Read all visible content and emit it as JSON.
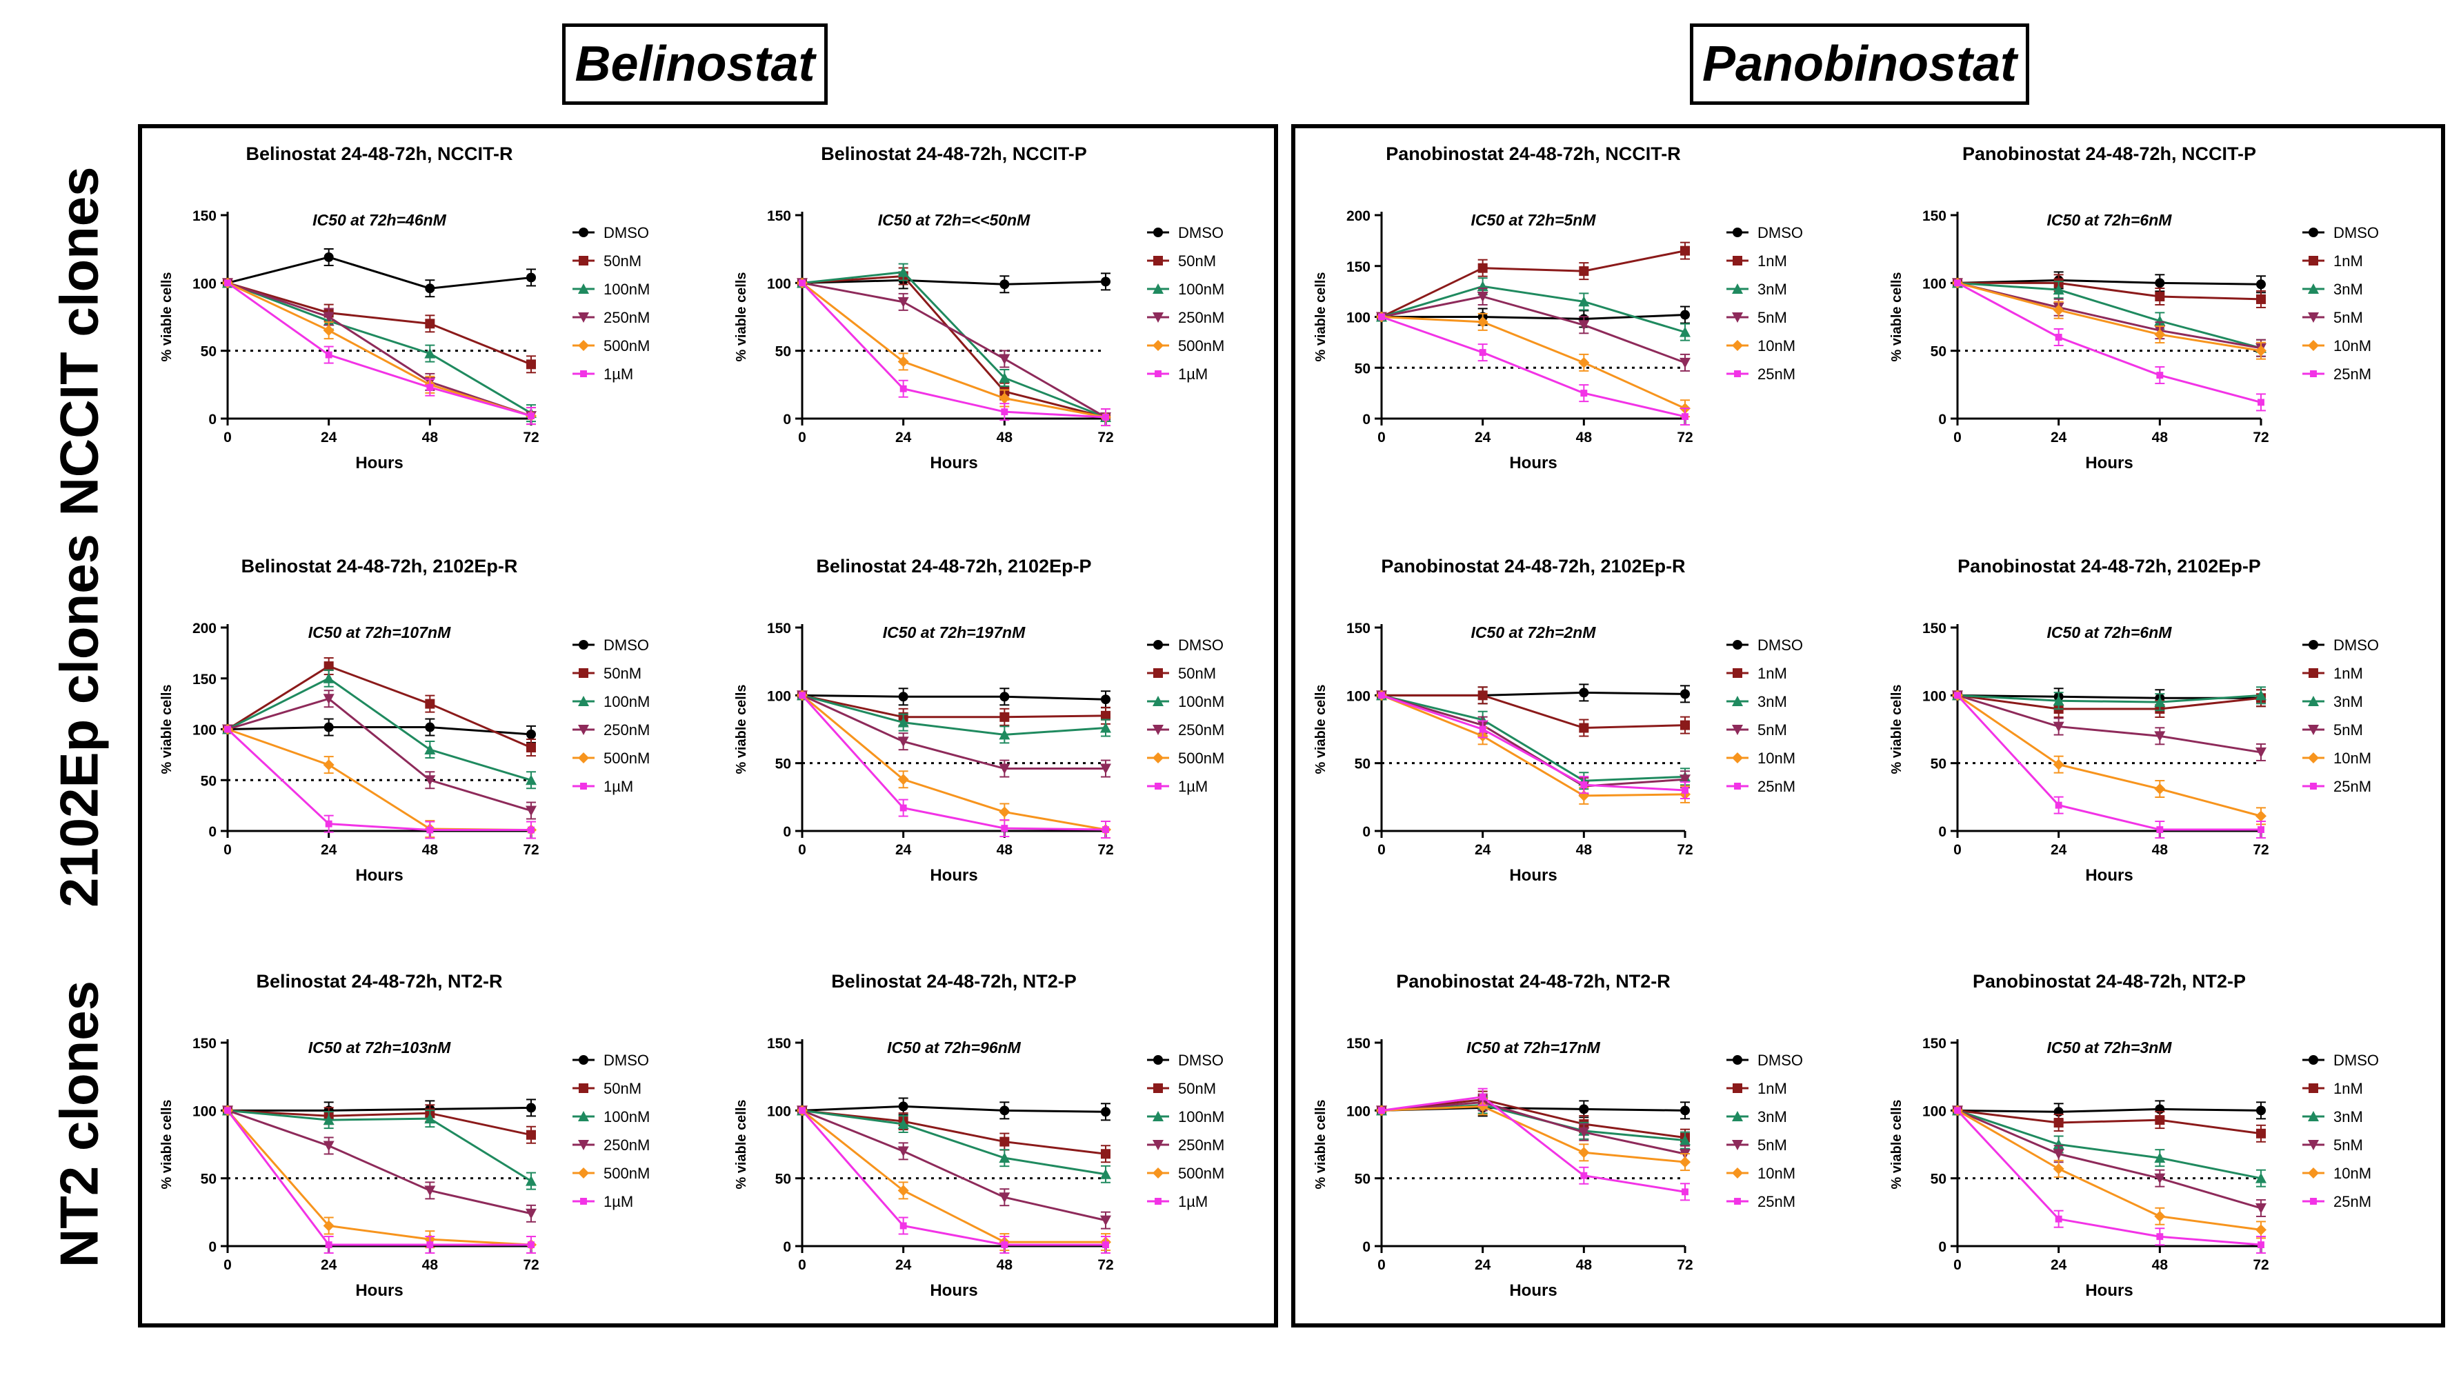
{
  "headers": {
    "belinostat": "Belinostat",
    "panobinostat": "Panobinostat"
  },
  "row_labels": [
    "NCCIT clones",
    "2102Ep clones",
    "NT2 clones"
  ],
  "colors": {
    "series": [
      "#000000",
      "#8B1A1A",
      "#1F8A5F",
      "#8E2A5A",
      "#F7941D",
      "#F233E6"
    ],
    "ic50_line": "#000000"
  },
  "chart_data": [
    {
      "type": "line",
      "title": "Belinostat 24-48-72h, NCCIT-R",
      "annotation": "IC50 at 72h=46nM",
      "xlabel": "Hours",
      "ylabel": "% viable cells",
      "x": [
        0,
        24,
        48,
        72
      ],
      "xticks": [
        "0",
        "24",
        "48",
        "72"
      ],
      "ylim": [
        0,
        150
      ],
      "yticks": [
        "0",
        "50",
        "100",
        "150"
      ],
      "threshold": 50,
      "series": [
        {
          "name": "DMSO",
          "values": [
            100,
            119,
            96,
            104
          ]
        },
        {
          "name": "50nM",
          "values": [
            100,
            78,
            70,
            40
          ]
        },
        {
          "name": "100nM",
          "values": [
            100,
            72,
            48,
            4
          ]
        },
        {
          "name": "250nM",
          "values": [
            100,
            75,
            27,
            2
          ]
        },
        {
          "name": "500nM",
          "values": [
            100,
            65,
            25,
            2
          ]
        },
        {
          "name": "1µM",
          "values": [
            100,
            47,
            23,
            2
          ]
        }
      ]
    },
    {
      "type": "line",
      "title": "Belinostat 24-48-72h, NCCIT-P",
      "annotation": "IC50 at 72h=<<50nM",
      "xlabel": "Hours",
      "ylabel": "% viable cells",
      "x": [
        0,
        24,
        48,
        72
      ],
      "xticks": [
        "0",
        "24",
        "48",
        "72"
      ],
      "ylim": [
        0,
        150
      ],
      "yticks": [
        "0",
        "50",
        "100",
        "150"
      ],
      "threshold": 50,
      "series": [
        {
          "name": "DMSO",
          "values": [
            100,
            102,
            99,
            101
          ]
        },
        {
          "name": "50nM",
          "values": [
            100,
            105,
            20,
            1
          ]
        },
        {
          "name": "100nM",
          "values": [
            100,
            108,
            30,
            1
          ]
        },
        {
          "name": "250nM",
          "values": [
            100,
            86,
            44,
            1
          ]
        },
        {
          "name": "500nM",
          "values": [
            100,
            42,
            15,
            1
          ]
        },
        {
          "name": "1µM",
          "values": [
            100,
            22,
            5,
            1
          ]
        }
      ]
    },
    {
      "type": "line",
      "title": "Panobinostat 24-48-72h, NCCIT-R",
      "annotation": "IC50 at 72h=5nM",
      "xlabel": "Hours",
      "ylabel": "% viable cells",
      "x": [
        0,
        24,
        48,
        72
      ],
      "xticks": [
        "0",
        "24",
        "48",
        "72"
      ],
      "ylim": [
        0,
        200
      ],
      "yticks": [
        "0",
        "50",
        "100",
        "150",
        "200"
      ],
      "threshold": 50,
      "series": [
        {
          "name": "DMSO",
          "values": [
            100,
            100,
            98,
            102
          ]
        },
        {
          "name": "1nM",
          "values": [
            100,
            148,
            145,
            165
          ]
        },
        {
          "name": "3nM",
          "values": [
            100,
            130,
            115,
            85
          ]
        },
        {
          "name": "5nM",
          "values": [
            100,
            120,
            92,
            55
          ]
        },
        {
          "name": "10nM",
          "values": [
            100,
            95,
            55,
            10
          ]
        },
        {
          "name": "25nM",
          "values": [
            100,
            65,
            25,
            2
          ]
        }
      ]
    },
    {
      "type": "line",
      "title": "Panobinostat 24-48-72h, NCCIT-P",
      "annotation": "IC50 at 72h=6nM",
      "xlabel": "Hours",
      "ylabel": "% viable cells",
      "x": [
        0,
        24,
        48,
        72
      ],
      "xticks": [
        "0",
        "24",
        "48",
        "72"
      ],
      "ylim": [
        0,
        150
      ],
      "yticks": [
        "0",
        "50",
        "100",
        "150"
      ],
      "threshold": 50,
      "series": [
        {
          "name": "DMSO",
          "values": [
            100,
            102,
            100,
            99
          ]
        },
        {
          "name": "1nM",
          "values": [
            100,
            100,
            90,
            88
          ]
        },
        {
          "name": "3nM",
          "values": [
            100,
            95,
            72,
            52
          ]
        },
        {
          "name": "5nM",
          "values": [
            100,
            82,
            65,
            52
          ]
        },
        {
          "name": "10nM",
          "values": [
            100,
            80,
            62,
            50
          ]
        },
        {
          "name": "25nM",
          "values": [
            100,
            60,
            32,
            12
          ]
        }
      ]
    },
    {
      "type": "line",
      "title": "Belinostat 24-48-72h, 2102Ep-R",
      "annotation": "IC50 at 72h=107nM",
      "xlabel": "Hours",
      "ylabel": "% viable cells",
      "x": [
        0,
        24,
        48,
        72
      ],
      "xticks": [
        "0",
        "24",
        "48",
        "72"
      ],
      "ylim": [
        0,
        200
      ],
      "yticks": [
        "0",
        "50",
        "100",
        "150",
        "200"
      ],
      "threshold": 50,
      "series": [
        {
          "name": "DMSO",
          "values": [
            100,
            102,
            102,
            95
          ]
        },
        {
          "name": "50nM",
          "values": [
            100,
            162,
            125,
            82
          ]
        },
        {
          "name": "100nM",
          "values": [
            100,
            150,
            80,
            50
          ]
        },
        {
          "name": "250nM",
          "values": [
            100,
            130,
            50,
            20
          ]
        },
        {
          "name": "500nM",
          "values": [
            100,
            65,
            2,
            1
          ]
        },
        {
          "name": "1µM",
          "values": [
            100,
            7,
            1,
            1
          ]
        }
      ]
    },
    {
      "type": "line",
      "title": "Belinostat 24-48-72h, 2102Ep-P",
      "annotation": "IC50 at 72h=197nM",
      "xlabel": "Hours",
      "ylabel": "% viable cells",
      "x": [
        0,
        24,
        48,
        72
      ],
      "xticks": [
        "0",
        "24",
        "48",
        "72"
      ],
      "ylim": [
        0,
        150
      ],
      "yticks": [
        "0",
        "50",
        "100",
        "150"
      ],
      "threshold": 50,
      "series": [
        {
          "name": "DMSO",
          "values": [
            100,
            99,
            99,
            97
          ]
        },
        {
          "name": "50nM",
          "values": [
            100,
            84,
            84,
            85
          ]
        },
        {
          "name": "100nM",
          "values": [
            100,
            80,
            71,
            76
          ]
        },
        {
          "name": "250nM",
          "values": [
            100,
            66,
            46,
            46
          ]
        },
        {
          "name": "500nM",
          "values": [
            100,
            38,
            14,
            1
          ]
        },
        {
          "name": "1µM",
          "values": [
            100,
            17,
            2,
            1
          ]
        }
      ]
    },
    {
      "type": "line",
      "title": "Panobinostat 24-48-72h, 2102Ep-R",
      "annotation": "IC50 at 72h=2nM",
      "xlabel": "Hours",
      "ylabel": "% viable cells",
      "x": [
        0,
        24,
        48,
        72
      ],
      "xticks": [
        "0",
        "24",
        "48",
        "72"
      ],
      "ylim": [
        0,
        150
      ],
      "yticks": [
        "0",
        "50",
        "100",
        "150"
      ],
      "threshold": 50,
      "series": [
        {
          "name": "DMSO",
          "values": [
            100,
            100,
            102,
            101
          ]
        },
        {
          "name": "1nM",
          "values": [
            100,
            100,
            76,
            78
          ]
        },
        {
          "name": "3nM",
          "values": [
            100,
            82,
            37,
            40
          ]
        },
        {
          "name": "5nM",
          "values": [
            100,
            78,
            33,
            38
          ]
        },
        {
          "name": "10nM",
          "values": [
            100,
            70,
            26,
            27
          ]
        },
        {
          "name": "25nM",
          "values": [
            100,
            75,
            34,
            30
          ]
        }
      ]
    },
    {
      "type": "line",
      "title": "Panobinostat 24-48-72h, 2102Ep-P",
      "annotation": "IC50 at 72h=6nM",
      "xlabel": "Hours",
      "ylabel": "% viable cells",
      "x": [
        0,
        24,
        48,
        72
      ],
      "xticks": [
        "0",
        "24",
        "48",
        "72"
      ],
      "ylim": [
        0,
        150
      ],
      "yticks": [
        "0",
        "50",
        "100",
        "150"
      ],
      "threshold": 50,
      "series": [
        {
          "name": "DMSO",
          "values": [
            100,
            99,
            98,
            98
          ]
        },
        {
          "name": "1nM",
          "values": [
            100,
            90,
            90,
            98
          ]
        },
        {
          "name": "3nM",
          "values": [
            100,
            96,
            95,
            100
          ]
        },
        {
          "name": "5nM",
          "values": [
            100,
            77,
            70,
            58
          ]
        },
        {
          "name": "10nM",
          "values": [
            100,
            49,
            31,
            11
          ]
        },
        {
          "name": "25nM",
          "values": [
            100,
            19,
            1,
            1
          ]
        }
      ]
    },
    {
      "type": "line",
      "title": "Belinostat 24-48-72h, NT2-R",
      "annotation": "IC50 at 72h=103nM",
      "xlabel": "Hours",
      "ylabel": "% viable cells",
      "x": [
        0,
        24,
        48,
        72
      ],
      "xticks": [
        "0",
        "24",
        "48",
        "72"
      ],
      "ylim": [
        0,
        150
      ],
      "yticks": [
        "0",
        "50",
        "100",
        "150"
      ],
      "threshold": 50,
      "series": [
        {
          "name": "DMSO",
          "values": [
            100,
            100,
            101,
            102
          ]
        },
        {
          "name": "50nM",
          "values": [
            100,
            96,
            98,
            82
          ]
        },
        {
          "name": "100nM",
          "values": [
            100,
            93,
            94,
            48
          ]
        },
        {
          "name": "250nM",
          "values": [
            100,
            74,
            41,
            24
          ]
        },
        {
          "name": "500nM",
          "values": [
            100,
            15,
            5,
            1
          ]
        },
        {
          "name": "1µM",
          "values": [
            100,
            1,
            1,
            1
          ]
        }
      ]
    },
    {
      "type": "line",
      "title": "Belinostat 24-48-72h, NT2-P",
      "annotation": "IC50 at 72h=96nM",
      "xlabel": "Hours",
      "ylabel": "% viable cells",
      "x": [
        0,
        24,
        48,
        72
      ],
      "xticks": [
        "0",
        "24",
        "48",
        "72"
      ],
      "ylim": [
        0,
        150
      ],
      "yticks": [
        "0",
        "50",
        "100",
        "150"
      ],
      "threshold": 50,
      "series": [
        {
          "name": "DMSO",
          "values": [
            100,
            103,
            100,
            99
          ]
        },
        {
          "name": "50nM",
          "values": [
            100,
            92,
            77,
            68
          ]
        },
        {
          "name": "100nM",
          "values": [
            100,
            90,
            65,
            53
          ]
        },
        {
          "name": "250nM",
          "values": [
            100,
            70,
            36,
            19
          ]
        },
        {
          "name": "500nM",
          "values": [
            100,
            41,
            3,
            3
          ]
        },
        {
          "name": "1µM",
          "values": [
            100,
            15,
            1,
            1
          ]
        }
      ]
    },
    {
      "type": "line",
      "title": "Panobinostat 24-48-72h, NT2-R",
      "annotation": "IC50 at 72h=17nM",
      "xlabel": "Hours",
      "ylabel": "% viable cells",
      "x": [
        0,
        24,
        48,
        72
      ],
      "xticks": [
        "0",
        "24",
        "48",
        "72"
      ],
      "ylim": [
        0,
        150
      ],
      "yticks": [
        "0",
        "50",
        "100",
        "150"
      ],
      "threshold": 50,
      "series": [
        {
          "name": "DMSO",
          "values": [
            100,
            102,
            101,
            100
          ]
        },
        {
          "name": "1nM",
          "values": [
            100,
            108,
            90,
            80
          ]
        },
        {
          "name": "3nM",
          "values": [
            100,
            104,
            85,
            78
          ]
        },
        {
          "name": "5nM",
          "values": [
            100,
            106,
            84,
            68
          ]
        },
        {
          "name": "10nM",
          "values": [
            100,
            103,
            69,
            62
          ]
        },
        {
          "name": "25nM",
          "values": [
            100,
            110,
            52,
            40
          ]
        }
      ]
    },
    {
      "type": "line",
      "title": "Panobinostat 24-48-72h, NT2-P",
      "annotation": "IC50 at 72h=3nM",
      "xlabel": "Hours",
      "ylabel": "% viable cells",
      "x": [
        0,
        24,
        48,
        72
      ],
      "xticks": [
        "0",
        "24",
        "48",
        "72"
      ],
      "ylim": [
        0,
        150
      ],
      "yticks": [
        "0",
        "50",
        "100",
        "150"
      ],
      "threshold": 50,
      "series": [
        {
          "name": "DMSO",
          "values": [
            100,
            99,
            101,
            100
          ]
        },
        {
          "name": "1nM",
          "values": [
            100,
            91,
            93,
            83
          ]
        },
        {
          "name": "3nM",
          "values": [
            100,
            75,
            65,
            50
          ]
        },
        {
          "name": "5nM",
          "values": [
            100,
            68,
            50,
            28
          ]
        },
        {
          "name": "10nM",
          "values": [
            100,
            57,
            22,
            12
          ]
        },
        {
          "name": "25nM",
          "values": [
            100,
            20,
            7,
            1
          ]
        }
      ]
    }
  ]
}
